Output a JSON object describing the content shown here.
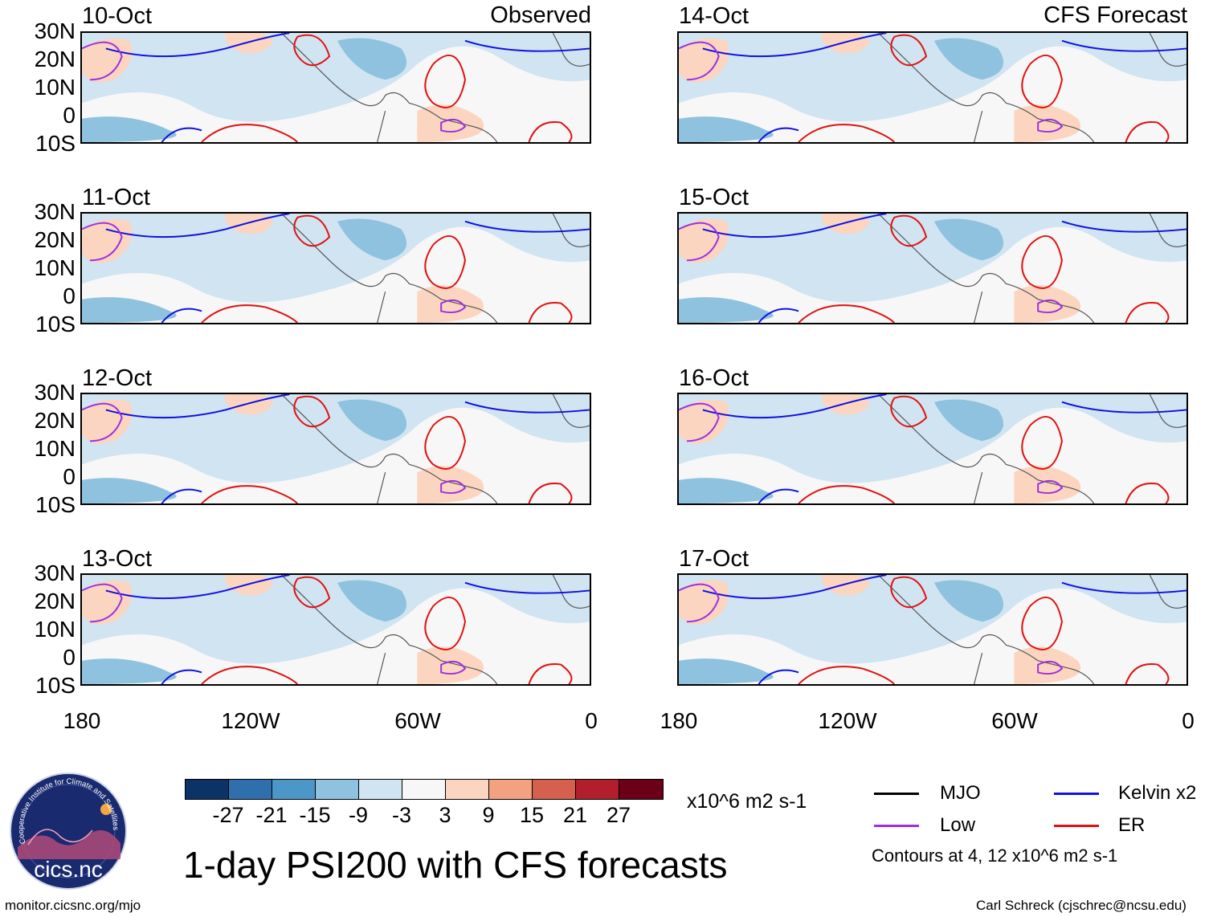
{
  "title": "1-day PSI200 with CFS forecasts",
  "corner_labels": {
    "left": "Observed",
    "right": "CFS Forecast"
  },
  "panels": [
    {
      "date": "10-Oct"
    },
    {
      "date": "11-Oct"
    },
    {
      "date": "12-Oct"
    },
    {
      "date": "13-Oct"
    },
    {
      "date": "14-Oct"
    },
    {
      "date": "15-Oct"
    },
    {
      "date": "16-Oct"
    },
    {
      "date": "17-Oct"
    }
  ],
  "lat_labels": [
    "30N",
    "20N",
    "10N",
    "0",
    "10S"
  ],
  "lon_labels": [
    "180",
    "120W",
    "60W",
    "0"
  ],
  "colorbar": {
    "colors": [
      "#0b3366",
      "#2f6fad",
      "#4a97c8",
      "#8ec2de",
      "#d0e4f1",
      "#f7f7f7",
      "#fbd5c0",
      "#f2a27f",
      "#d4604d",
      "#b11f2c",
      "#6b0016"
    ],
    "labels": [
      "-27",
      "-21",
      "-15",
      "-9",
      "-3",
      "3",
      "9",
      "15",
      "21",
      "27"
    ],
    "units": "x10^6 m2 s-1"
  },
  "legend": {
    "items": [
      {
        "label": "MJO",
        "color": "#000000"
      },
      {
        "label": "Kelvin x2",
        "color": "#1010e0"
      },
      {
        "label": "Low",
        "color": "#9b30e0"
      },
      {
        "label": "ER",
        "color": "#e01010"
      }
    ],
    "note": "Contours at 4, 12 x10^6 m2 s-1"
  },
  "logo_text": "cics.nc",
  "logo_ring_text": "Cooperative Institute for Climate and Satellites",
  "footer": {
    "left": "monitor.cicsnc.org/mjo",
    "right": "Carl Schreck (cjschrec@ncsu.edu)"
  }
}
